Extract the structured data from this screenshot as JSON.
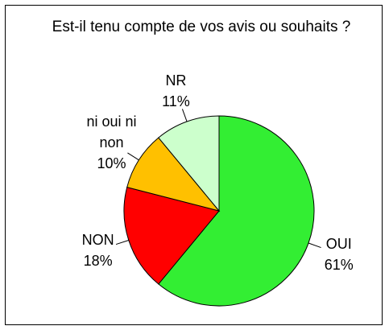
{
  "chart_data": {
    "type": "pie",
    "title": "Est-il tenu compte de vos avis ou souhaits ?",
    "categories": [
      "OUI",
      "NON",
      "ni oui ni non",
      "NR"
    ],
    "values": [
      61,
      18,
      10,
      11
    ],
    "value_labels": [
      "61%",
      "18%",
      "10%",
      "11%"
    ],
    "colors": [
      "#33ee33",
      "#ff0000",
      "#ffc000",
      "#ccffcc"
    ]
  }
}
